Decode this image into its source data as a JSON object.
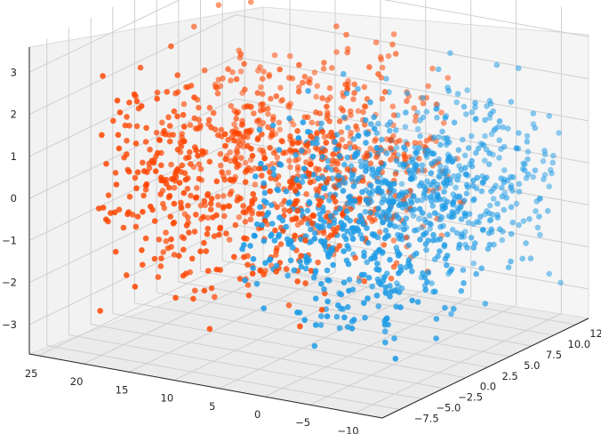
{
  "chart_data": {
    "type": "scatter",
    "subtype": "3d-scatter",
    "title": "",
    "xlabel": "",
    "ylabel": "",
    "zlabel": "",
    "grid": true,
    "legend": "none",
    "axes": {
      "x": {
        "ticks": [
          -7.5,
          -5.0,
          -2.5,
          0.0,
          2.5,
          5.0,
          7.5,
          10.0,
          12.5
        ],
        "labels": [
          "−7.5",
          "−5.0",
          "−2.5",
          "0.0",
          "2.5",
          "5.0",
          "7.5",
          "10.0",
          "12.5"
        ],
        "range": [
          -9.5,
          14
        ]
      },
      "y": {
        "ticks": [
          -10,
          -5,
          0,
          5,
          10,
          15,
          20,
          25
        ],
        "labels": [
          "−10",
          "−5",
          "0",
          "5",
          "10",
          "15",
          "20",
          "25"
        ],
        "range": [
          -13,
          26
        ]
      },
      "z": {
        "ticks": [
          -3,
          -2,
          -1,
          0,
          1,
          2,
          3
        ],
        "labels": [
          "−3",
          "−2",
          "−1",
          "0",
          "1",
          "2",
          "3"
        ],
        "range": [
          -3.7,
          3.6
        ]
      }
    },
    "series": [
      {
        "color": "#ff4500",
        "point_count": 900,
        "y_range_approx": [
          -2,
          24
        ],
        "x_range_approx": [
          -6,
          12
        ],
        "z_range_approx": [
          -3,
          3
        ]
      },
      {
        "color": "#1e9be6",
        "point_count": 900,
        "y_range_approx": [
          -12,
          6
        ],
        "x_range_approx": [
          -7,
          13
        ],
        "z_range_approx": [
          -3,
          2.5
        ]
      }
    ],
    "colors": {
      "series_a": "#ff4500",
      "series_b": "#1e9be6",
      "pane": "#f2f2f2",
      "grid": "#cfcfcf"
    }
  }
}
